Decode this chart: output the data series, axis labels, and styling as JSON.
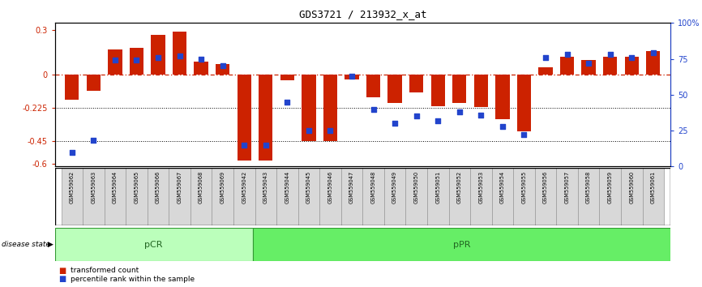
{
  "title": "GDS3721 / 213932_x_at",
  "samples": [
    "GSM559062",
    "GSM559063",
    "GSM559064",
    "GSM559065",
    "GSM559066",
    "GSM559067",
    "GSM559068",
    "GSM559069",
    "GSM559042",
    "GSM559043",
    "GSM559044",
    "GSM559045",
    "GSM559046",
    "GSM559047",
    "GSM559048",
    "GSM559049",
    "GSM559050",
    "GSM559051",
    "GSM559052",
    "GSM559053",
    "GSM559054",
    "GSM559055",
    "GSM559056",
    "GSM559057",
    "GSM559058",
    "GSM559059",
    "GSM559060",
    "GSM559061"
  ],
  "bar_values": [
    -0.17,
    -0.11,
    0.17,
    0.18,
    0.27,
    0.29,
    0.09,
    0.07,
    -0.58,
    -0.58,
    -0.04,
    -0.45,
    -0.45,
    -0.03,
    -0.15,
    -0.19,
    -0.12,
    -0.21,
    -0.19,
    -0.22,
    -0.3,
    -0.38,
    0.05,
    0.12,
    0.1,
    0.12,
    0.12,
    0.16
  ],
  "dot_values": [
    10,
    18,
    74,
    74,
    76,
    77,
    75,
    70,
    15,
    15,
    45,
    25,
    25,
    63,
    40,
    30,
    35,
    32,
    38,
    36,
    28,
    22,
    76,
    78,
    72,
    78,
    76,
    79
  ],
  "pCR_count": 9,
  "pPR_count": 19,
  "bar_color": "#cc2200",
  "dot_color": "#2244cc",
  "zero_line_color": "#cc2200",
  "ylim_left": [
    -0.62,
    0.35
  ],
  "ylim_right": [
    0,
    100
  ],
  "yticks_left": [
    -0.6,
    -0.45,
    -0.225,
    0.0,
    0.3
  ],
  "yticks_right": [
    0,
    25,
    50,
    75,
    100
  ],
  "ytick_labels_left": [
    "-0.6",
    "-0.45",
    "-0.225",
    "0",
    "0.3"
  ],
  "ytick_labels_right": [
    "0",
    "25",
    "50",
    "75",
    "100%"
  ],
  "hlines": [
    -0.225,
    -0.45
  ],
  "pCR_color": "#bbffbb",
  "pPR_color": "#66ee66",
  "pCR_label": "pCR",
  "pPR_label": "pPR",
  "disease_state_label": "disease state",
  "legend_bar_label": "transformed count",
  "legend_dot_label": "percentile rank within the sample",
  "title_fontsize": 9,
  "tick_fontsize": 7,
  "label_fontsize": 7
}
